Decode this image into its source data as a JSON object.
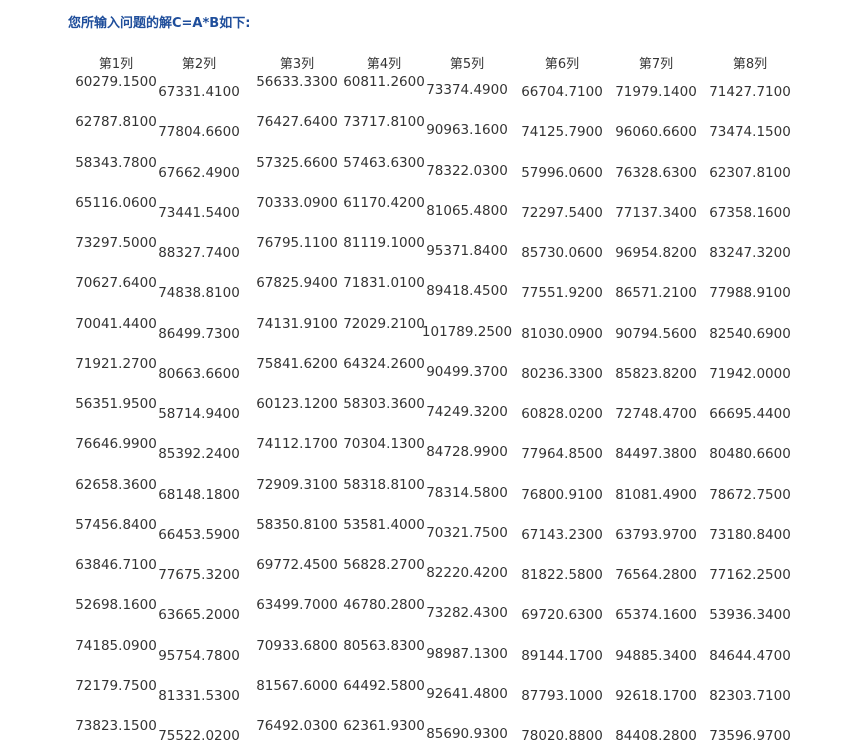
{
  "title": "您所输入问题的解C=A*B如下:",
  "headers": [
    "第1列",
    "第2列",
    "第3列",
    "第4列",
    "第5列",
    "第6列",
    "第7列",
    "第8列"
  ],
  "rows": [
    [
      "60279.1500",
      "67331.4100",
      "56633.3300",
      "60811.2600",
      "73374.4900",
      "66704.7100",
      "71979.1400",
      "71427.7100"
    ],
    [
      "62787.8100",
      "77804.6600",
      "76427.6400",
      "73717.8100",
      "90963.1600",
      "74125.7900",
      "96060.6600",
      "73474.1500"
    ],
    [
      "58343.7800",
      "67662.4900",
      "57325.6600",
      "57463.6300",
      "78322.0300",
      "57996.0600",
      "76328.6300",
      "62307.8100"
    ],
    [
      "65116.0600",
      "73441.5400",
      "70333.0900",
      "61170.4200",
      "81065.4800",
      "72297.5400",
      "77137.3400",
      "67358.1600"
    ],
    [
      "73297.5000",
      "88327.7400",
      "76795.1100",
      "81119.1000",
      "95371.8400",
      "85730.0600",
      "96954.8200",
      "83247.3200"
    ],
    [
      "70627.6400",
      "74838.8100",
      "67825.9400",
      "71831.0100",
      "89418.4500",
      "77551.9200",
      "86571.2100",
      "77988.9100"
    ],
    [
      "70041.4400",
      "86499.7300",
      "74131.9100",
      "72029.2100",
      "101789.2500",
      "81030.0900",
      "90794.5600",
      "82540.6900"
    ],
    [
      "71921.2700",
      "80663.6600",
      "75841.6200",
      "64324.2600",
      "90499.3700",
      "80236.3300",
      "85823.8200",
      "71942.0000"
    ],
    [
      "56351.9500",
      "58714.9400",
      "60123.1200",
      "58303.3600",
      "74249.3200",
      "60828.0200",
      "72748.4700",
      "66695.4400"
    ],
    [
      "76646.9900",
      "85392.2400",
      "74112.1700",
      "70304.1300",
      "84728.9900",
      "77964.8500",
      "84497.3800",
      "80480.6600"
    ],
    [
      "62658.3600",
      "68148.1800",
      "72909.3100",
      "58318.8100",
      "78314.5800",
      "76800.9100",
      "81081.4900",
      "78672.7500"
    ],
    [
      "57456.8400",
      "66453.5900",
      "58350.8100",
      "53581.4000",
      "70321.7500",
      "67143.2300",
      "63793.9700",
      "73180.8400"
    ],
    [
      "63846.7100",
      "77675.3200",
      "69772.4500",
      "56828.2700",
      "82220.4200",
      "81822.5800",
      "76564.2800",
      "77162.2500"
    ],
    [
      "52698.1600",
      "63665.2000",
      "63499.7000",
      "46780.2800",
      "73282.4300",
      "69720.6300",
      "65374.1600",
      "53936.3400"
    ],
    [
      "74185.0900",
      "95754.7800",
      "70933.6800",
      "80563.8300",
      "98987.1300",
      "89144.1700",
      "94885.3400",
      "84644.4700"
    ],
    [
      "72179.7500",
      "81331.5300",
      "81567.6000",
      "64492.5800",
      "92641.4800",
      "87793.1000",
      "92618.1700",
      "82303.7100"
    ],
    [
      "73823.1500",
      "75522.0200",
      "76492.0300",
      "62361.9300",
      "85690.9300",
      "78020.8800",
      "84408.2800",
      "73596.9700"
    ]
  ]
}
